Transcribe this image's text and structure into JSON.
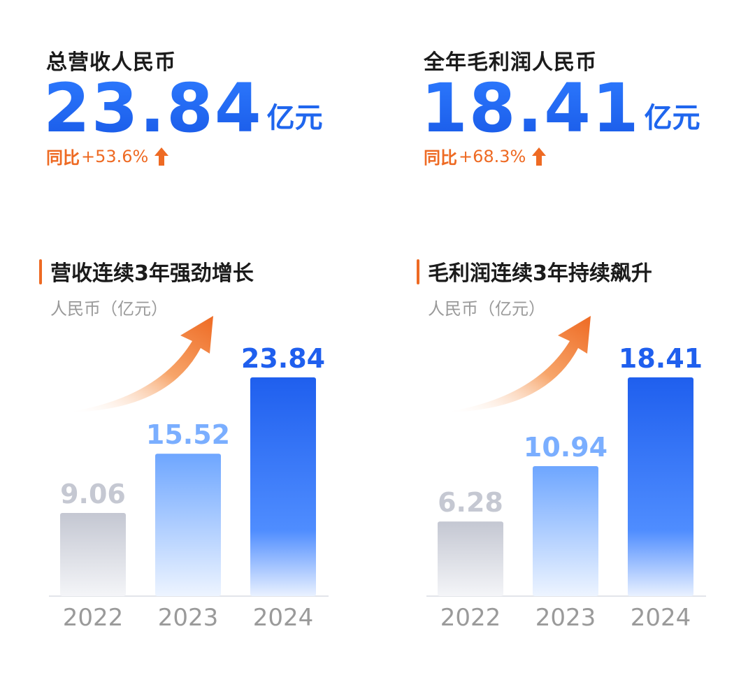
{
  "colors": {
    "accent_blue": "#1f66ee",
    "accent_orange": "#ee6a23",
    "muted_gray": "#9a9a9a"
  },
  "left": {
    "kpi": {
      "label": "总营收人民币",
      "value": "23.84",
      "unit": "亿元",
      "change_label": "同比",
      "change_value": "+53.6%",
      "trend_icon": "up-arrow-icon"
    },
    "section_title": "营收连续3年强劲增长",
    "unit_label": "人民币（亿元）"
  },
  "right": {
    "kpi": {
      "label": "全年毛利润人民币",
      "value": "18.41",
      "unit": "亿元",
      "change_label": "同比",
      "change_value": "+68.3%",
      "trend_icon": "up-arrow-icon"
    },
    "section_title": "毛利润连续3年持续飙升",
    "unit_label": "人民币（亿元）"
  },
  "chart_data": [
    {
      "type": "bar",
      "title": "营收连续3年强劲增长",
      "ylabel": "人民币（亿元）",
      "categories": [
        "2022",
        "2023",
        "2024"
      ],
      "values": [
        9.06,
        15.52,
        23.84
      ],
      "value_labels": [
        "9.06",
        "15.52",
        "23.84"
      ],
      "ylim": [
        0,
        26
      ],
      "grid": false,
      "bar_colors": [
        "#c9ccd6",
        "#7fb0ff",
        "#1f66ee"
      ]
    },
    {
      "type": "bar",
      "title": "毛利润连续3年持续飙升",
      "ylabel": "人民币（亿元）",
      "categories": [
        "2022",
        "2023",
        "2024"
      ],
      "values": [
        6.28,
        10.94,
        18.41
      ],
      "value_labels": [
        "6.28",
        "10.94",
        "18.41"
      ],
      "ylim": [
        0,
        20
      ],
      "grid": false,
      "bar_colors": [
        "#c9ccd6",
        "#7fb0ff",
        "#1f66ee"
      ]
    }
  ]
}
